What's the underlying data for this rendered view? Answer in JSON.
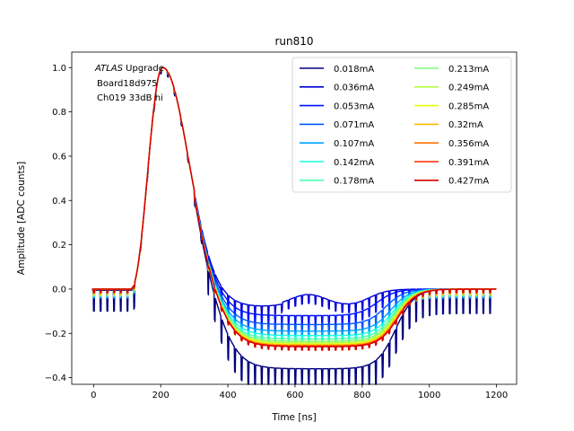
{
  "chart_data": {
    "type": "line",
    "title": "run810",
    "xlabel": "Time [ns]",
    "ylabel": "Amplitude [ADC counts]",
    "xlim": [
      -65,
      1260
    ],
    "ylim": [
      -0.43,
      1.07
    ],
    "xticks": [
      "0",
      "200",
      "400",
      "600",
      "800",
      "1000",
      "1200"
    ],
    "yticks": [
      "−0.4",
      "−0.2",
      "0.0",
      "0.2",
      "0.4",
      "0.6",
      "0.8",
      "1.0"
    ],
    "grid": false,
    "legend_placement": "top-right",
    "legend_columns": 2,
    "annotation": {
      "italic": "ATLAS",
      "rest": " Upgrade",
      "line2": "Board18d975",
      "line3": "Ch019 33dB hi"
    },
    "series": [
      {
        "name": "0.018mA",
        "color": "#00007f",
        "baseline": -0.36,
        "end_time": 900,
        "glitch": 0.11
      },
      {
        "name": "0.036mA",
        "color": "#0000d6",
        "baseline": -0.08,
        "end_time": 820,
        "glitch": 0.05
      },
      {
        "name": "0.053mA",
        "color": "#0010ff",
        "baseline": -0.12,
        "end_time": 845,
        "glitch": 0.05
      },
      {
        "name": "0.071mA",
        "color": "#0058ff",
        "baseline": -0.16,
        "end_time": 870,
        "glitch": 0.05
      },
      {
        "name": "0.107mA",
        "color": "#00a4ff",
        "baseline": -0.19,
        "end_time": 885,
        "glitch": 0.05
      },
      {
        "name": "0.142mA",
        "color": "#17ffe0",
        "baseline": -0.21,
        "end_time": 890,
        "glitch": 0.04
      },
      {
        "name": "0.178mA",
        "color": "#4dffaa",
        "baseline": -0.225,
        "end_time": 893,
        "glitch": 0.04
      },
      {
        "name": "0.213mA",
        "color": "#7dff7a",
        "baseline": -0.235,
        "end_time": 896,
        "glitch": 0.04
      },
      {
        "name": "0.249mA",
        "color": "#b4ff43",
        "baseline": -0.242,
        "end_time": 898,
        "glitch": 0.03
      },
      {
        "name": "0.285mA",
        "color": "#e4ff13",
        "baseline": -0.248,
        "end_time": 900,
        "glitch": 0.03
      },
      {
        "name": "0.32mA",
        "color": "#ffb900",
        "baseline": -0.252,
        "end_time": 902,
        "glitch": 0.03
      },
      {
        "name": "0.356mA",
        "color": "#ff7300",
        "baseline": -0.256,
        "end_time": 904,
        "glitch": 0.02
      },
      {
        "name": "0.391mA",
        "color": "#ff2900",
        "baseline": -0.258,
        "end_time": 905,
        "glitch": 0.02
      },
      {
        "name": "0.427mA",
        "color": "#d40000",
        "baseline": -0.26,
        "end_time": 906,
        "glitch": 0.02
      }
    ]
  }
}
